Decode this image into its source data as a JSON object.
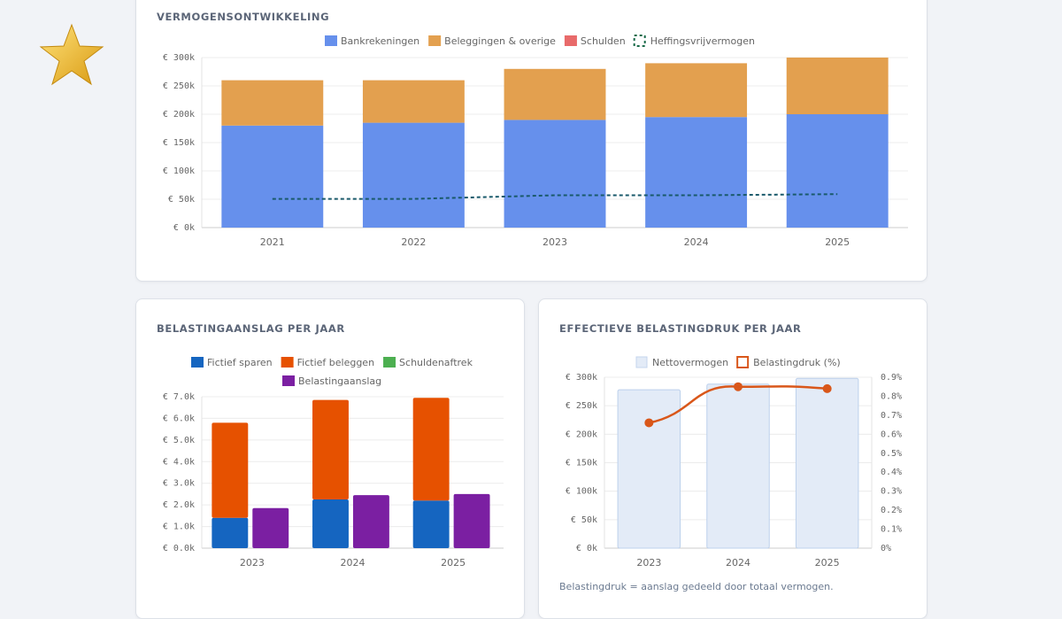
{
  "colors": {
    "bank": "#6690ec",
    "beleg": "#e3a04f",
    "schuld": "#e86a6a",
    "heffing": "#1a6b4a",
    "sparen": "#1565c0",
    "beleggen": "#e65100",
    "schuldenaftrek": "#4caf50",
    "aanslag": "#7b1fa2",
    "netto": "#e3ebf7",
    "druk": "#d9571a"
  },
  "chart_data": [
    {
      "id": "c1",
      "type": "bar",
      "stacked": true,
      "title": "VERMOGENSONTWIKKELING",
      "categories": [
        "2021",
        "2022",
        "2023",
        "2024",
        "2025"
      ],
      "ylim": [
        0,
        300000
      ],
      "yticks": [
        "€ 0k",
        "€ 50k",
        "€ 100k",
        "€ 150k",
        "€ 200k",
        "€ 250k",
        "€ 300k"
      ],
      "legend": "top",
      "series": [
        {
          "name": "Bankrekeningen",
          "values": [
            180000,
            185000,
            190000,
            195000,
            200000
          ]
        },
        {
          "name": "Beleggingen & overige",
          "values": [
            80000,
            75000,
            90000,
            95000,
            100000
          ]
        },
        {
          "name": "Schulden",
          "values": [
            0,
            0,
            0,
            0,
            0
          ]
        },
        {
          "name": "Heffingsvrijvermogen",
          "type": "line",
          "dashed": true,
          "values": [
            50650,
            50650,
            57000,
            57000,
            59000
          ]
        }
      ]
    },
    {
      "id": "c2",
      "type": "bar",
      "title": "BELASTINGAANSLAG PER JAAR",
      "categories": [
        "2023",
        "2024",
        "2025"
      ],
      "ylim": [
        0,
        7000
      ],
      "yticks": [
        "€ 0.0k",
        "€ 1.0k",
        "€ 2.0k",
        "€ 3.0k",
        "€ 4.0k",
        "€ 5.0k",
        "€ 6.0k",
        "€ 7.0k"
      ],
      "legend": "top",
      "series": [
        {
          "name": "Fictief sparen",
          "stack": "a",
          "values": [
            1400,
            2250,
            2200
          ]
        },
        {
          "name": "Fictief beleggen",
          "stack": "a",
          "values": [
            4400,
            4600,
            4750
          ]
        },
        {
          "name": "Schuldenaftrek",
          "stack": "a",
          "values": [
            0,
            0,
            0
          ]
        },
        {
          "name": "Belastingaanslag",
          "stack": "b",
          "values": [
            1850,
            2450,
            2500
          ]
        }
      ]
    },
    {
      "id": "c3",
      "type": "bar+line",
      "title": "EFFECTIEVE BELASTINGDRUK PER JAAR",
      "categories": [
        "2023",
        "2024",
        "2025"
      ],
      "ylim": [
        0,
        300000
      ],
      "y2lim": [
        0,
        0.9
      ],
      "yticks": [
        "€ 0k",
        "€ 50k",
        "€ 100k",
        "€ 150k",
        "€ 200k",
        "€ 250k",
        "€ 300k"
      ],
      "y2ticks": [
        "0%",
        "0.1%",
        "0.2%",
        "0.3%",
        "0.4%",
        "0.5%",
        "0.6%",
        "0.7%",
        "0.8%",
        "0.9%"
      ],
      "legend": "top",
      "series": [
        {
          "name": "Nettovermogen",
          "values": [
            278000,
            288000,
            298000
          ]
        },
        {
          "name": "Belastingdruk (%)",
          "type": "line",
          "axis": "right",
          "values": [
            0.66,
            0.85,
            0.84
          ]
        }
      ],
      "note": "Belastingdruk = aanslag gedeeld door totaal vermogen."
    }
  ]
}
